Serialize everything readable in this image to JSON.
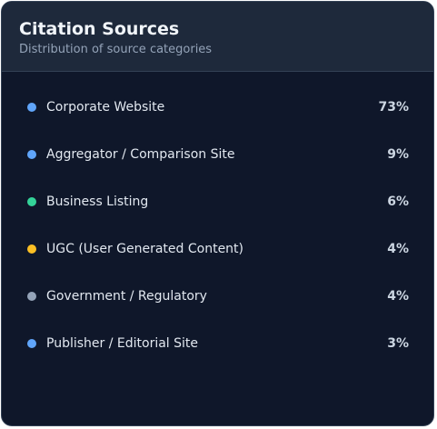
{
  "card": {
    "title": "Citation Sources",
    "subtitle": "Distribution of source categories"
  },
  "items": [
    {
      "label": "Corporate Website",
      "value": "73%",
      "color": "#60a5fa"
    },
    {
      "label": "Aggregator / Comparison Site",
      "value": "9%",
      "color": "#60a5fa"
    },
    {
      "label": "Business Listing",
      "value": "6%",
      "color": "#34d399"
    },
    {
      "label": "UGC (User Generated Content)",
      "value": "4%",
      "color": "#fbbf24"
    },
    {
      "label": "Government / Regulatory",
      "value": "4%",
      "color": "#94a3b8"
    },
    {
      "label": "Publisher / Editorial Site",
      "value": "3%",
      "color": "#60a5fa"
    }
  ]
}
